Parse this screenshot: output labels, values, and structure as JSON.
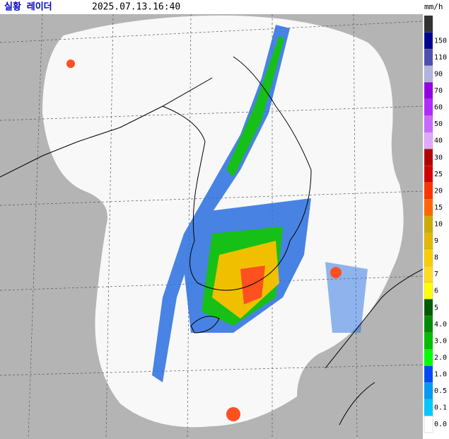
{
  "header": {
    "title": "실황 레이더",
    "timestamp": "2025.07.13.16:40",
    "unit": "mm/h"
  },
  "legend": {
    "items": [
      {
        "label": "150",
        "color": "#000390"
      },
      {
        "label": "110",
        "color": "#4c4eb1"
      },
      {
        "label": "90",
        "color": "#b3b4de"
      },
      {
        "label": "70",
        "color": "#9300e4"
      },
      {
        "label": "60",
        "color": "#b329ff"
      },
      {
        "label": "50",
        "color": "#c969ff"
      },
      {
        "label": "40",
        "color": "#e0a9ff"
      },
      {
        "label": "30",
        "color": "#b40000"
      },
      {
        "label": "25",
        "color": "#d20000"
      },
      {
        "label": "20",
        "color": "#ff3200"
      },
      {
        "label": "15",
        "color": "#ff6600"
      },
      {
        "label": "10",
        "color": "#ccaa00"
      },
      {
        "label": "9",
        "color": "#e0b900"
      },
      {
        "label": "8",
        "color": "#f9cd00"
      },
      {
        "label": "7",
        "color": "#ffdc1f"
      },
      {
        "label": "6",
        "color": "#ffff00"
      },
      {
        "label": "5",
        "color": "#005a00"
      },
      {
        "label": "4.0",
        "color": "#008c00"
      },
      {
        "label": "3.0",
        "color": "#00be00"
      },
      {
        "label": "2.0",
        "color": "#00ff00"
      },
      {
        "label": "1.0",
        "color": "#004af5"
      },
      {
        "label": "0.5",
        "color": "#009bf5"
      },
      {
        "label": "0.1",
        "color": "#00c8ff"
      },
      {
        "label": "0.0",
        "color": "#ffffff"
      }
    ],
    "top_color": "#333333"
  }
}
